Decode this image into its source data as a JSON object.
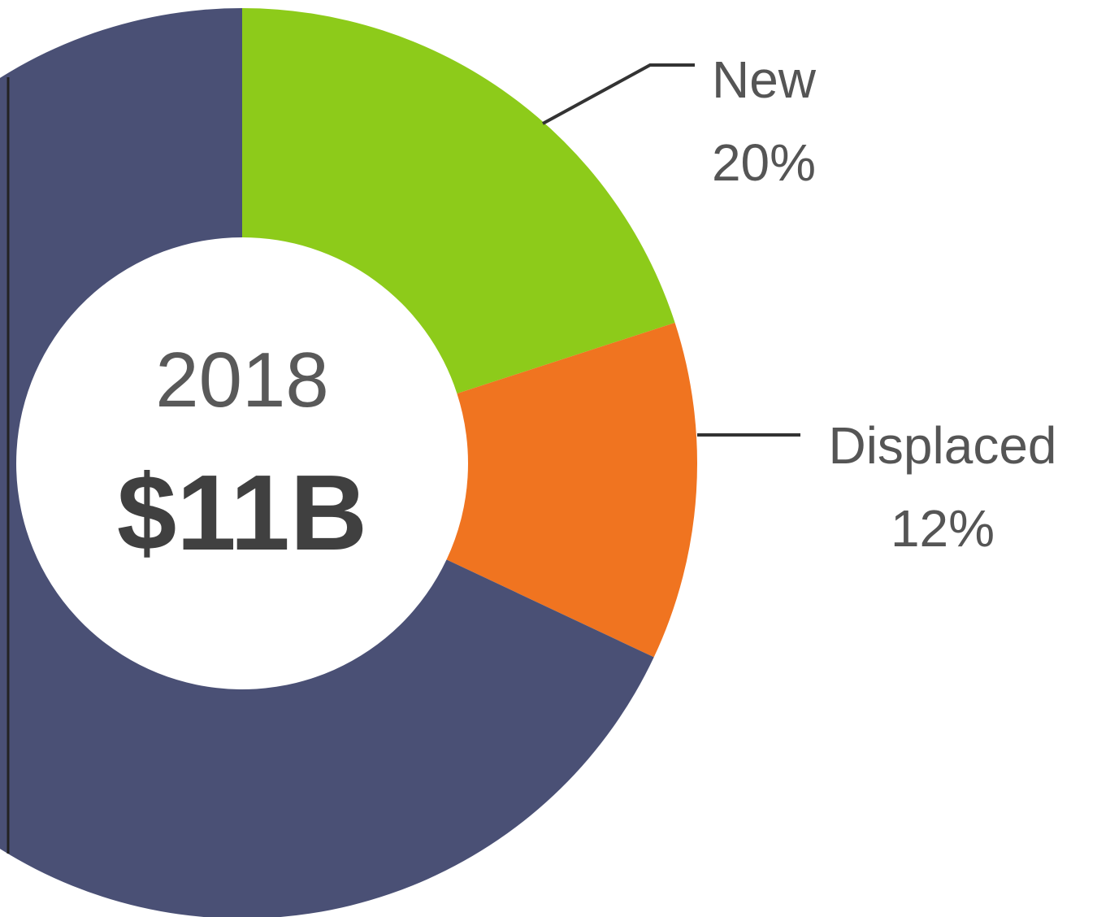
{
  "chart_data": {
    "type": "pie",
    "style": "donut",
    "title": "",
    "center": {
      "year": "2018",
      "total": "$11B"
    },
    "slices": [
      {
        "label": "New",
        "value_label": "20%",
        "value": 20,
        "color": "#8DCB1A",
        "labeled": true
      },
      {
        "label": "Displaced",
        "value_label": "12%",
        "value": 12,
        "color": "#F07420",
        "labeled": true
      },
      {
        "label": "",
        "value_label": "",
        "value": 68,
        "color": "#4A5075",
        "labeled": false
      }
    ],
    "legend": "none",
    "background": "#FFFFFF"
  }
}
